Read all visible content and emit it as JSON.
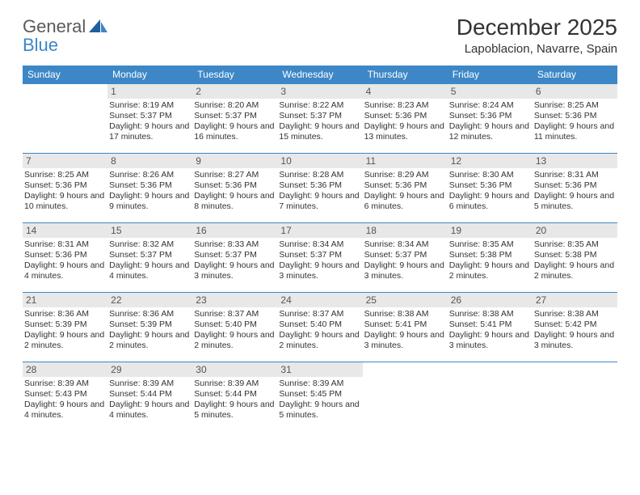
{
  "logo": {
    "word1": "General",
    "word2": "Blue"
  },
  "header": {
    "title": "December 2025",
    "location": "Lapoblacion, Navarre, Spain"
  },
  "colors": {
    "brand_blue": "#3d87c7",
    "header_bg": "#3d87c7",
    "daynum_bg": "#e8e8e8",
    "text": "#333333",
    "logo_gray": "#5a5a5a"
  },
  "dayNames": [
    "Sunday",
    "Monday",
    "Tuesday",
    "Wednesday",
    "Thursday",
    "Friday",
    "Saturday"
  ],
  "weeks": [
    [
      {
        "n": "",
        "sr": "",
        "ss": "",
        "dl": ""
      },
      {
        "n": "1",
        "sr": "8:19 AM",
        "ss": "5:37 PM",
        "dl": "9 hours and 17 minutes."
      },
      {
        "n": "2",
        "sr": "8:20 AM",
        "ss": "5:37 PM",
        "dl": "9 hours and 16 minutes."
      },
      {
        "n": "3",
        "sr": "8:22 AM",
        "ss": "5:37 PM",
        "dl": "9 hours and 15 minutes."
      },
      {
        "n": "4",
        "sr": "8:23 AM",
        "ss": "5:36 PM",
        "dl": "9 hours and 13 minutes."
      },
      {
        "n": "5",
        "sr": "8:24 AM",
        "ss": "5:36 PM",
        "dl": "9 hours and 12 minutes."
      },
      {
        "n": "6",
        "sr": "8:25 AM",
        "ss": "5:36 PM",
        "dl": "9 hours and 11 minutes."
      }
    ],
    [
      {
        "n": "7",
        "sr": "8:25 AM",
        "ss": "5:36 PM",
        "dl": "9 hours and 10 minutes."
      },
      {
        "n": "8",
        "sr": "8:26 AM",
        "ss": "5:36 PM",
        "dl": "9 hours and 9 minutes."
      },
      {
        "n": "9",
        "sr": "8:27 AM",
        "ss": "5:36 PM",
        "dl": "9 hours and 8 minutes."
      },
      {
        "n": "10",
        "sr": "8:28 AM",
        "ss": "5:36 PM",
        "dl": "9 hours and 7 minutes."
      },
      {
        "n": "11",
        "sr": "8:29 AM",
        "ss": "5:36 PM",
        "dl": "9 hours and 6 minutes."
      },
      {
        "n": "12",
        "sr": "8:30 AM",
        "ss": "5:36 PM",
        "dl": "9 hours and 6 minutes."
      },
      {
        "n": "13",
        "sr": "8:31 AM",
        "ss": "5:36 PM",
        "dl": "9 hours and 5 minutes."
      }
    ],
    [
      {
        "n": "14",
        "sr": "8:31 AM",
        "ss": "5:36 PM",
        "dl": "9 hours and 4 minutes."
      },
      {
        "n": "15",
        "sr": "8:32 AM",
        "ss": "5:37 PM",
        "dl": "9 hours and 4 minutes."
      },
      {
        "n": "16",
        "sr": "8:33 AM",
        "ss": "5:37 PM",
        "dl": "9 hours and 3 minutes."
      },
      {
        "n": "17",
        "sr": "8:34 AM",
        "ss": "5:37 PM",
        "dl": "9 hours and 3 minutes."
      },
      {
        "n": "18",
        "sr": "8:34 AM",
        "ss": "5:37 PM",
        "dl": "9 hours and 3 minutes."
      },
      {
        "n": "19",
        "sr": "8:35 AM",
        "ss": "5:38 PM",
        "dl": "9 hours and 2 minutes."
      },
      {
        "n": "20",
        "sr": "8:35 AM",
        "ss": "5:38 PM",
        "dl": "9 hours and 2 minutes."
      }
    ],
    [
      {
        "n": "21",
        "sr": "8:36 AM",
        "ss": "5:39 PM",
        "dl": "9 hours and 2 minutes."
      },
      {
        "n": "22",
        "sr": "8:36 AM",
        "ss": "5:39 PM",
        "dl": "9 hours and 2 minutes."
      },
      {
        "n": "23",
        "sr": "8:37 AM",
        "ss": "5:40 PM",
        "dl": "9 hours and 2 minutes."
      },
      {
        "n": "24",
        "sr": "8:37 AM",
        "ss": "5:40 PM",
        "dl": "9 hours and 2 minutes."
      },
      {
        "n": "25",
        "sr": "8:38 AM",
        "ss": "5:41 PM",
        "dl": "9 hours and 3 minutes."
      },
      {
        "n": "26",
        "sr": "8:38 AM",
        "ss": "5:41 PM",
        "dl": "9 hours and 3 minutes."
      },
      {
        "n": "27",
        "sr": "8:38 AM",
        "ss": "5:42 PM",
        "dl": "9 hours and 3 minutes."
      }
    ],
    [
      {
        "n": "28",
        "sr": "8:39 AM",
        "ss": "5:43 PM",
        "dl": "9 hours and 4 minutes."
      },
      {
        "n": "29",
        "sr": "8:39 AM",
        "ss": "5:44 PM",
        "dl": "9 hours and 4 minutes."
      },
      {
        "n": "30",
        "sr": "8:39 AM",
        "ss": "5:44 PM",
        "dl": "9 hours and 5 minutes."
      },
      {
        "n": "31",
        "sr": "8:39 AM",
        "ss": "5:45 PM",
        "dl": "9 hours and 5 minutes."
      },
      {
        "n": "",
        "sr": "",
        "ss": "",
        "dl": ""
      },
      {
        "n": "",
        "sr": "",
        "ss": "",
        "dl": ""
      },
      {
        "n": "",
        "sr": "",
        "ss": "",
        "dl": ""
      }
    ]
  ],
  "labels": {
    "sunrise": "Sunrise:",
    "sunset": "Sunset:",
    "daylight": "Daylight:"
  }
}
